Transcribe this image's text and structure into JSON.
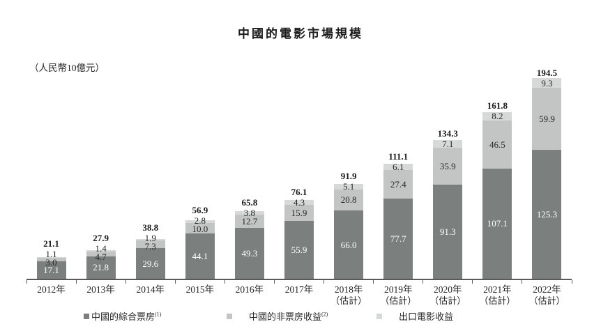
{
  "title": "中國的電影市場規模",
  "unit_label": "（人民幣10億元）",
  "colors": {
    "box_office": "#7b7f7e",
    "non_box_office": "#c2c5c3",
    "export_revenue": "#d7d9d8",
    "axis": "#5a5a5a",
    "text": "#262626"
  },
  "legend": [
    {
      "key": "box-office",
      "label": "中國的綜合票房",
      "sup": "(1)",
      "color": "#7b7f7e"
    },
    {
      "key": "non-box-office",
      "label": "中國的非票房收益",
      "sup": "(2)",
      "color": "#c2c5c3"
    },
    {
      "key": "export-revenue",
      "label": "出口電影收益",
      "sup": "",
      "color": "#d7d9d8"
    }
  ],
  "chart_data": {
    "type": "bar",
    "stacked": true,
    "title": "中國的電影市場規模",
    "ylabel": "（人民幣10億元）",
    "ylim": [
      0,
      200
    ],
    "grid": false,
    "legend_position": "bottom",
    "categories": [
      "2012年",
      "2013年",
      "2014年",
      "2015年",
      "2016年",
      "2017年",
      "2018年",
      "2019年",
      "2020年",
      "2021年",
      "2022年"
    ],
    "category_notes": [
      "",
      "",
      "",
      "",
      "",
      "",
      "（估計）",
      "（估計）",
      "（估計）",
      "（估計）",
      "（估計）"
    ],
    "series": [
      {
        "key": "box-office",
        "name": "中國的綜合票房(1)",
        "color": "#7b7f7e",
        "values": [
          17.1,
          21.8,
          29.6,
          44.1,
          49.3,
          55.9,
          66.0,
          77.7,
          91.3,
          107.1,
          125.3
        ]
      },
      {
        "key": "non-box-office",
        "name": "中國的非票房收益(2)",
        "color": "#c2c5c3",
        "values": [
          3.0,
          4.7,
          7.3,
          10.0,
          12.7,
          15.9,
          20.8,
          27.4,
          35.9,
          46.5,
          59.9
        ]
      },
      {
        "key": "export-revenue",
        "name": "出口電影收益",
        "color": "#d7d9d8",
        "values": [
          1.1,
          1.4,
          1.9,
          2.8,
          3.8,
          4.3,
          5.1,
          6.1,
          7.1,
          8.2,
          9.3
        ]
      }
    ],
    "totals": [
      21.1,
      27.9,
      38.8,
      56.9,
      65.8,
      76.1,
      91.9,
      111.1,
      134.3,
      161.8,
      194.5
    ]
  }
}
